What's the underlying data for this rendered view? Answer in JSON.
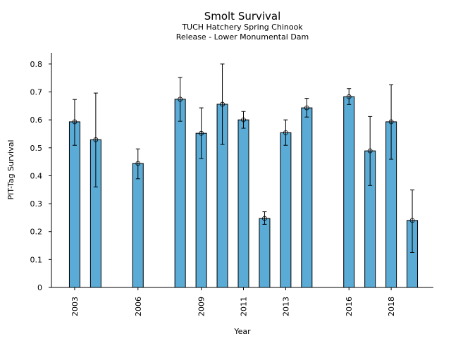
{
  "chart_data": {
    "type": "bar",
    "title": "Smolt Survival",
    "subtitle": [
      "TUCH Hatchery Spring Chinook",
      "Release - Lower Monumental Dam"
    ],
    "xlabel": "Year",
    "ylabel": "PIT-Tag Survival",
    "ylim": [
      0,
      0.84
    ],
    "xlim": [
      2001.9,
      2020.0
    ],
    "yticks": [
      0,
      0.1,
      0.2,
      0.3,
      0.4,
      0.5,
      0.6,
      0.7,
      0.8
    ],
    "ytick_labels": [
      "0",
      "0.1",
      "0.2",
      "0.3",
      "0.4",
      "0.5",
      "0.6",
      "0.7",
      "0.8"
    ],
    "xticks": [
      2003,
      2006,
      2009,
      2011,
      2013,
      2016,
      2018
    ],
    "xtick_labels": [
      "2003",
      "2006",
      "2009",
      "2011",
      "2013",
      "2016",
      "2018"
    ],
    "grid": false,
    "bar_color": "#5aabd6",
    "edge_color": "#000000",
    "series": [
      {
        "name": "PIT-Tag Survival",
        "x": [
          2003,
          2004,
          2006,
          2008,
          2009,
          2010,
          2011,
          2012,
          2013,
          2014,
          2016,
          2017,
          2018,
          2019
        ],
        "values": [
          0.593,
          0.529,
          0.444,
          0.674,
          0.552,
          0.656,
          0.6,
          0.247,
          0.554,
          0.643,
          0.683,
          0.489,
          0.593,
          0.24
        ],
        "upper": [
          0.673,
          0.696,
          0.496,
          0.752,
          0.643,
          0.8,
          0.63,
          0.271,
          0.6,
          0.677,
          0.712,
          0.612,
          0.726,
          0.349
        ],
        "lower": [
          0.509,
          0.36,
          0.389,
          0.595,
          0.462,
          0.512,
          0.57,
          0.226,
          0.509,
          0.61,
          0.655,
          0.365,
          0.459,
          0.125
        ]
      }
    ]
  }
}
